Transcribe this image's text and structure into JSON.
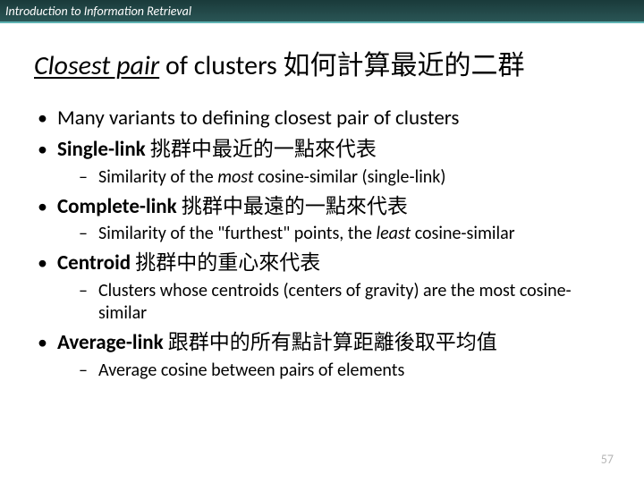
{
  "header": {
    "text": "Introduction to Information Retrieval"
  },
  "title": {
    "italic_underlined": "Closest pair",
    "rest": " of clusters 如何計算最近的二群"
  },
  "bullets": {
    "b1": "Many variants to defining closest pair of clusters",
    "b2_bold": "Single-link",
    "b2_rest": " 挑群中最近的一點來代表",
    "b2_sub_pre": "Similarity of the ",
    "b2_sub_em": "most",
    "b2_sub_post": " cosine-similar (single-link)",
    "b3_bold": "Complete-link",
    "b3_rest": " 挑群中最遠的一點來代表",
    "b3_sub_pre": "Similarity of the \"furthest\" points, the ",
    "b3_sub_em": "least",
    "b3_sub_post": " cosine-similar",
    "b4_bold": "Centroid",
    "b4_rest": " 挑群中的重心來代表",
    "b4_sub": "Clusters whose centroids (centers of gravity) are the most cosine-similar",
    "b5_bold": "Average-link",
    "b5_rest": " 跟群中的所有點計算距離後取平均值",
    "b5_sub": "Average cosine between pairs of elements"
  },
  "page_number": "57",
  "colors": {
    "header_bg_top": "#1a3a3a",
    "header_bg_bottom": "#2a5555",
    "header_border": "#5fb3b3",
    "header_text": "#ffffff",
    "body_text": "#000000",
    "pagenum": "#b7b7b7",
    "background": "#ffffff"
  }
}
